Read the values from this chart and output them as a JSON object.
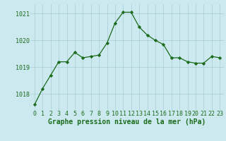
{
  "x": [
    0,
    1,
    2,
    3,
    4,
    5,
    6,
    7,
    8,
    9,
    10,
    11,
    12,
    13,
    14,
    15,
    16,
    17,
    18,
    19,
    20,
    21,
    22,
    23
  ],
  "y": [
    1017.6,
    1018.2,
    1018.7,
    1019.2,
    1019.2,
    1019.55,
    1019.35,
    1019.4,
    1019.45,
    1019.9,
    1020.65,
    1021.05,
    1021.05,
    1020.5,
    1020.2,
    1020.0,
    1019.85,
    1019.35,
    1019.35,
    1019.2,
    1019.15,
    1019.15,
    1019.4,
    1019.35
  ],
  "line_color": "#1a6b1a",
  "marker": "D",
  "marker_size": 2.2,
  "bg_color": "#cce9f0",
  "grid_color": "#a8cdd5",
  "xlabel": "Graphe pression niveau de la mer (hPa)",
  "xlabel_color": "#1a6b1a",
  "xlabel_fontsize": 7.0,
  "tick_color": "#1a6b1a",
  "tick_fontsize": 6.0,
  "ylim": [
    1017.4,
    1021.35
  ],
  "yticks": [
    1018,
    1019,
    1020,
    1021
  ],
  "xticks": [
    0,
    1,
    2,
    3,
    4,
    5,
    6,
    7,
    8,
    9,
    10,
    11,
    12,
    13,
    14,
    15,
    16,
    17,
    18,
    19,
    20,
    21,
    22,
    23
  ]
}
